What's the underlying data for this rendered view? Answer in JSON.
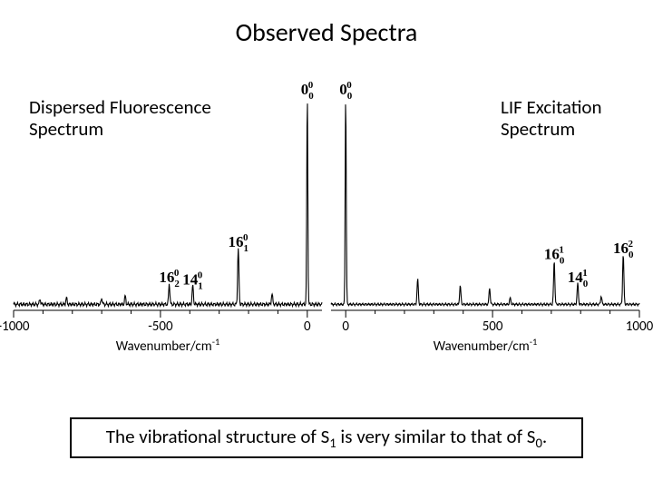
{
  "title": "Observed  Spectra",
  "left_label_line1": "Dispersed Fluorescence",
  "left_label_line2": "Spectrum",
  "right_label_line1": "LIF Excitation",
  "right_label_line2": "Spectrum",
  "conclusion_prefix": "The vibrational structure of S",
  "conclusion_sub1": "1",
  "conclusion_mid": " is very similar to that of S",
  "conclusion_sub2": "0",
  "conclusion_suffix": ".",
  "left_chart": {
    "type": "spectrum",
    "x_range": [
      -1000,
      50
    ],
    "x_ticks": [
      -1000,
      -500,
      0
    ],
    "x_label": "Wavenumber/cm",
    "x_label_sup": "-1",
    "baseline_y": 0.02,
    "background": "#ffffff",
    "line_color": "#000000",
    "line_width": 1.1,
    "tick_color": "#000000",
    "axis_font_size": 15,
    "noise_amp": 0.012,
    "peaks": [
      {
        "x": 0,
        "h": 1.0,
        "w": 2.5,
        "label": "0",
        "sub": "0",
        "sup": "0"
      },
      {
        "x": -235,
        "h": 0.27,
        "w": 3,
        "label": "16",
        "sub": "1",
        "sup": "0"
      },
      {
        "x": -470,
        "h": 0.1,
        "w": 3,
        "label": "16",
        "sub": "2",
        "sup": "0"
      },
      {
        "x": -390,
        "h": 0.09,
        "w": 3,
        "label": "14",
        "sub": "1",
        "sup": "0"
      },
      {
        "x": -120,
        "h": 0.05,
        "w": 3
      },
      {
        "x": -620,
        "h": 0.04,
        "w": 3
      },
      {
        "x": -700,
        "h": 0.03,
        "w": 3
      },
      {
        "x": -820,
        "h": 0.03,
        "w": 3
      },
      {
        "x": -910,
        "h": 0.025,
        "w": 3
      }
    ]
  },
  "right_chart": {
    "type": "spectrum",
    "x_range": [
      -50,
      1000
    ],
    "x_ticks": [
      0,
      500,
      1000
    ],
    "x_label": "Wavenumber/cm",
    "x_label_sup": "-1",
    "baseline_y": 0.02,
    "background": "#ffffff",
    "line_color": "#000000",
    "line_width": 1.1,
    "tick_color": "#000000",
    "axis_font_size": 15,
    "noise_amp": 0.008,
    "peaks": [
      {
        "x": 0,
        "h": 1.0,
        "w": 2.5,
        "label": "0",
        "sub": "0",
        "sup": "0"
      },
      {
        "x": 245,
        "h": 0.12,
        "w": 3
      },
      {
        "x": 390,
        "h": 0.09,
        "w": 3
      },
      {
        "x": 490,
        "h": 0.08,
        "w": 3
      },
      {
        "x": 710,
        "h": 0.21,
        "w": 3,
        "label": "16",
        "sub": "0",
        "sup": "1"
      },
      {
        "x": 790,
        "h": 0.1,
        "w": 3,
        "label": "14",
        "sub": "0",
        "sup": "1"
      },
      {
        "x": 945,
        "h": 0.24,
        "w": 3,
        "label": "16",
        "sub": "0",
        "sup": "2"
      },
      {
        "x": 870,
        "h": 0.04,
        "w": 3
      },
      {
        "x": 560,
        "h": 0.03,
        "w": 3
      }
    ]
  }
}
